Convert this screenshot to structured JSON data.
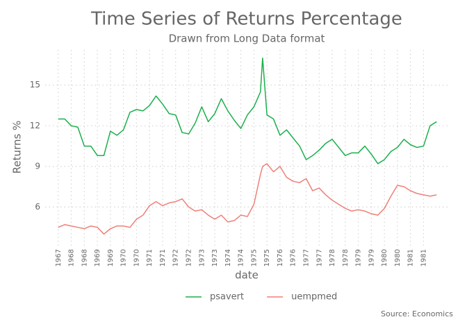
{
  "chart_data": {
    "type": "line",
    "title": "Time Series of Returns Percentage",
    "subtitle": "Drawn from Long Data format",
    "x_label": "date",
    "y_label": "Returns %",
    "caption": "Source: Economics",
    "x": [
      1967.5,
      1967.75,
      1968,
      1968.25,
      1968.5,
      1968.75,
      1969,
      1969.25,
      1969.5,
      1969.75,
      1970,
      1970.25,
      1970.5,
      1970.75,
      1971,
      1971.25,
      1971.5,
      1971.75,
      1972,
      1972.25,
      1972.5,
      1972.75,
      1973,
      1973.25,
      1973.5,
      1973.75,
      1974,
      1974.25,
      1974.5,
      1974.75,
      1975,
      1975.25,
      1975.333,
      1975.5,
      1975.75,
      1976,
      1976.25,
      1976.5,
      1976.75,
      1977,
      1977.25,
      1977.5,
      1977.75,
      1978,
      1978.25,
      1978.5,
      1978.75,
      1979,
      1979.25,
      1979.5,
      1979.75,
      1980,
      1980.25,
      1980.5,
      1980.75,
      1981,
      1981.25,
      1981.5,
      1981.75,
      1982
    ],
    "series": [
      {
        "name": "psavert",
        "color": "#1aaf4c",
        "values": [
          12.5,
          12.5,
          12.0,
          11.9,
          10.5,
          10.5,
          9.8,
          9.8,
          11.6,
          11.3,
          11.7,
          13.0,
          13.2,
          13.1,
          13.5,
          14.2,
          13.6,
          12.9,
          12.8,
          11.5,
          11.4,
          12.2,
          13.4,
          12.3,
          12.9,
          14.0,
          13.1,
          12.4,
          11.8,
          12.8,
          13.4,
          14.5,
          17.0,
          12.8,
          12.5,
          11.3,
          11.7,
          11.1,
          10.5,
          9.5,
          9.8,
          10.2,
          10.7,
          11.0,
          10.4,
          9.8,
          10.0,
          10.0,
          10.5,
          9.9,
          9.2,
          9.5,
          10.1,
          10.4,
          11.0,
          10.6,
          10.4,
          10.5,
          12.0,
          12.3
        ]
      },
      {
        "name": "uempmed",
        "color": "#ef7f77",
        "values": [
          4.5,
          4.7,
          4.6,
          4.5,
          4.4,
          4.6,
          4.5,
          4.0,
          4.4,
          4.6,
          4.6,
          4.5,
          5.1,
          5.4,
          6.1,
          6.4,
          6.1,
          6.3,
          6.4,
          6.6,
          6.0,
          5.7,
          5.8,
          5.4,
          5.1,
          5.4,
          4.9,
          5.0,
          5.4,
          5.3,
          6.2,
          8.4,
          9.0,
          9.2,
          8.6,
          9.0,
          8.2,
          7.9,
          7.8,
          8.1,
          7.2,
          7.4,
          6.9,
          6.5,
          6.2,
          5.9,
          5.7,
          5.8,
          5.7,
          5.5,
          5.4,
          5.9,
          6.8,
          7.6,
          7.5,
          7.2,
          7.0,
          6.9,
          6.8,
          6.9
        ]
      }
    ],
    "xlim": [
      1967.0,
      1982.5
    ],
    "xticks": [
      {
        "value": 1967.5,
        "label": "1967"
      },
      {
        "value": 1968,
        "label": "1968"
      },
      {
        "value": 1968.5,
        "label": "1968"
      },
      {
        "value": 1969,
        "label": "1969"
      },
      {
        "value": 1969.5,
        "label": "1969"
      },
      {
        "value": 1970,
        "label": "1970"
      },
      {
        "value": 1970.5,
        "label": "1970"
      },
      {
        "value": 1971,
        "label": "1971"
      },
      {
        "value": 1971.5,
        "label": "1971"
      },
      {
        "value": 1972,
        "label": "1972"
      },
      {
        "value": 1972.5,
        "label": "1972"
      },
      {
        "value": 1973,
        "label": "1973"
      },
      {
        "value": 1973.5,
        "label": "1973"
      },
      {
        "value": 1974,
        "label": "1974"
      },
      {
        "value": 1974.5,
        "label": "1974"
      },
      {
        "value": 1975,
        "label": "1975"
      },
      {
        "value": 1975.5,
        "label": "1975"
      },
      {
        "value": 1976,
        "label": "1976"
      },
      {
        "value": 1976.5,
        "label": "1976"
      },
      {
        "value": 1977,
        "label": "1977"
      },
      {
        "value": 1977.5,
        "label": "1977"
      },
      {
        "value": 1978,
        "label": "1978"
      },
      {
        "value": 1978.5,
        "label": "1978"
      },
      {
        "value": 1979,
        "label": "1979"
      },
      {
        "value": 1979.5,
        "label": "1979"
      },
      {
        "value": 1980,
        "label": "1980"
      },
      {
        "value": 1980.5,
        "label": "1980"
      },
      {
        "value": 1981,
        "label": "1981"
      },
      {
        "value": 1981.5,
        "label": "1981"
      }
    ],
    "ylim": [
      3.1,
      17.6
    ],
    "yticks": [
      6,
      9,
      12,
      15
    ],
    "grid": true,
    "legend": "bottom"
  }
}
